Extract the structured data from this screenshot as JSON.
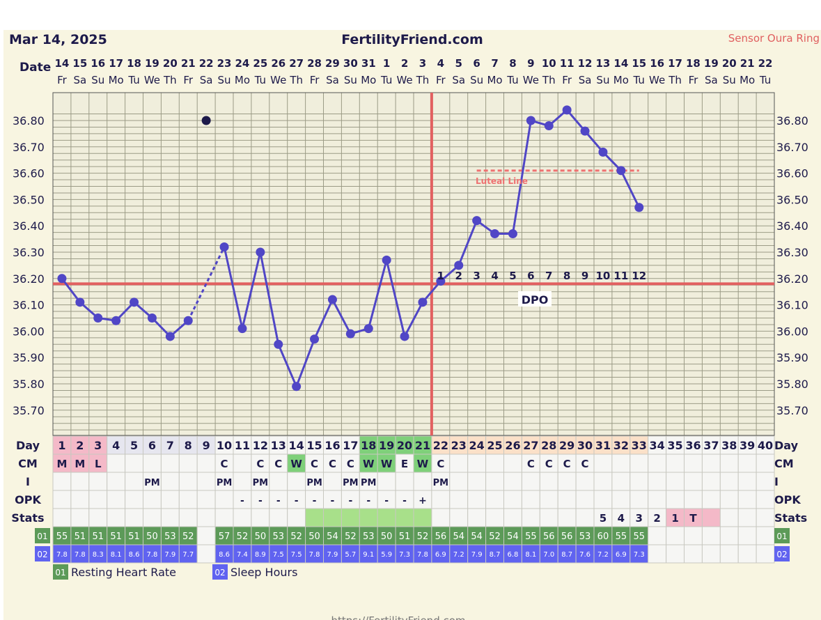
{
  "header": {
    "date": "Mar 14, 2025",
    "site": "FertilityFriend.com",
    "sensor": "Sensor Oura Ring"
  },
  "labels": {
    "date": "Date",
    "day": "Day",
    "cm": "CM",
    "i": "I",
    "opk": "OPK",
    "stats": "Stats",
    "row01": "01",
    "row02": "02",
    "luteal": "Luteal Line",
    "dpo": "DPO"
  },
  "legend": [
    {
      "badge": "01",
      "label": "Resting Heart Rate",
      "color": "#5c9a58"
    },
    {
      "badge": "02",
      "label": "Sleep Hours",
      "color": "#6063f0"
    }
  ],
  "footer_text": "https://FertilityFriend.com",
  "colors": {
    "line": "#5046c6",
    "coverline": "#e26060",
    "luteal": "#ee7070",
    "grid": "#9b9b86",
    "chart_bg": "#f0eedc",
    "menses": "#f4b9c8",
    "fertile": "#a8e08a",
    "fertile_day": "#7fd07a",
    "post_ov": "#fbe0c8",
    "rhr_cell": "#5c9a58",
    "sleep_cell": "#6063f0"
  },
  "chart_data": {
    "type": "line",
    "x": [
      "14",
      "15",
      "16",
      "17",
      "18",
      "19",
      "20",
      "21",
      "22",
      "23",
      "24",
      "25",
      "26",
      "27",
      "28",
      "29",
      "30",
      "31",
      "1",
      "2",
      "3",
      "4",
      "5",
      "6",
      "7",
      "8",
      "9",
      "10",
      "11",
      "12",
      "13",
      "14",
      "15",
      "16",
      "17",
      "18",
      "19",
      "20",
      "21",
      "22"
    ],
    "weekdays": [
      "Fr",
      "Sa",
      "Su",
      "Mo",
      "Tu",
      "We",
      "Th",
      "Fr",
      "Sa",
      "Su",
      "Mo",
      "Tu",
      "We",
      "Th",
      "Fr",
      "Sa",
      "Su",
      "Mo",
      "Tu",
      "We",
      "Th",
      "Fr",
      "Sa",
      "Su",
      "Mo",
      "Tu",
      "We",
      "Th",
      "Fr",
      "Sa",
      "Su",
      "Mo",
      "Tu",
      "We",
      "Th",
      "Fr",
      "Sa",
      "Su",
      "Mo",
      "Tu"
    ],
    "cycle_days": [
      1,
      2,
      3,
      4,
      5,
      6,
      7,
      8,
      9,
      10,
      11,
      12,
      13,
      14,
      15,
      16,
      17,
      18,
      19,
      20,
      21,
      22,
      23,
      24,
      25,
      26,
      27,
      28,
      29,
      30,
      31,
      32,
      33,
      34,
      35,
      36,
      37,
      38,
      39,
      40
    ],
    "temperatures": [
      36.2,
      36.11,
      36.05,
      36.04,
      36.11,
      36.05,
      35.98,
      36.04,
      null,
      36.32,
      36.01,
      36.3,
      35.95,
      35.79,
      35.97,
      36.12,
      35.99,
      36.01,
      36.27,
      35.98,
      36.11,
      36.19,
      36.25,
      36.42,
      36.37,
      36.37,
      36.8,
      36.78,
      36.84,
      36.76,
      36.68,
      36.61,
      36.47,
      null,
      null,
      null,
      null,
      null,
      null,
      null
    ],
    "discarded_temp": {
      "x": "22",
      "y": 36.8
    },
    "dashed_segment": [
      "21",
      "23"
    ],
    "y_ticks": [
      36.8,
      36.7,
      36.6,
      36.5,
      36.4,
      36.3,
      36.2,
      36.1,
      36.0,
      35.9,
      35.8,
      35.7
    ],
    "ylim": [
      35.63,
      36.93
    ],
    "coverline": 36.18,
    "ovulation_day": 21,
    "luteal_line": {
      "value": 36.61,
      "from_day": 24,
      "to_day": 33
    },
    "dpo": [
      1,
      2,
      3,
      4,
      5,
      6,
      7,
      8,
      9,
      10,
      11,
      12
    ],
    "dpo_start_day": 22,
    "cm": {
      "1": "M",
      "2": "M",
      "3": "L",
      "10": "C",
      "12": "C",
      "13": "C",
      "14": "W",
      "15": "C",
      "16": "C",
      "17": "C",
      "18": "W",
      "19": "W",
      "20": "E",
      "21": "W",
      "22": "C",
      "27": "C",
      "28": "C",
      "29": "C",
      "30": "C"
    },
    "intercourse": {
      "6": "PM",
      "10": "PM",
      "12": "PM",
      "15": "PM",
      "17": "PM",
      "18": "PM",
      "22": "PM"
    },
    "opk": {
      "11": "-",
      "12": "-",
      "13": "-",
      "14": "-",
      "15": "-",
      "16": "-",
      "17": "-",
      "18": "-",
      "19": "-",
      "20": "-",
      "21": "+"
    },
    "stats": {
      "31": "5",
      "32": "4",
      "33": "3",
      "34": "2",
      "35": "1",
      "36": "T"
    },
    "resting_heart_rate": [
      55,
      51,
      51,
      51,
      51,
      50,
      53,
      52,
      null,
      57,
      52,
      50,
      53,
      52,
      50,
      54,
      52,
      53,
      50,
      51,
      52,
      56,
      54,
      54,
      52,
      54,
      55,
      56,
      56,
      53,
      60,
      55,
      55,
      null,
      null,
      null,
      null,
      null,
      null,
      null
    ],
    "sleep_hours": [
      "7.8",
      "7.8",
      "8.3",
      "8.1",
      "8.6",
      "7.8",
      "7.9",
      "7.7",
      null,
      "8.6",
      "7.4",
      "8.9",
      "7.5",
      "7.5",
      "7.8",
      "7.9",
      "5.7",
      "9.1",
      "5.9",
      "7.3",
      "7.8",
      "6.9",
      "7.2",
      "7.9",
      "8.7",
      "6.8",
      "8.1",
      "7.0",
      "8.7",
      "7.6",
      "7.2",
      "6.9",
      "7.3",
      null,
      null,
      null,
      null,
      null,
      null,
      null
    ]
  }
}
